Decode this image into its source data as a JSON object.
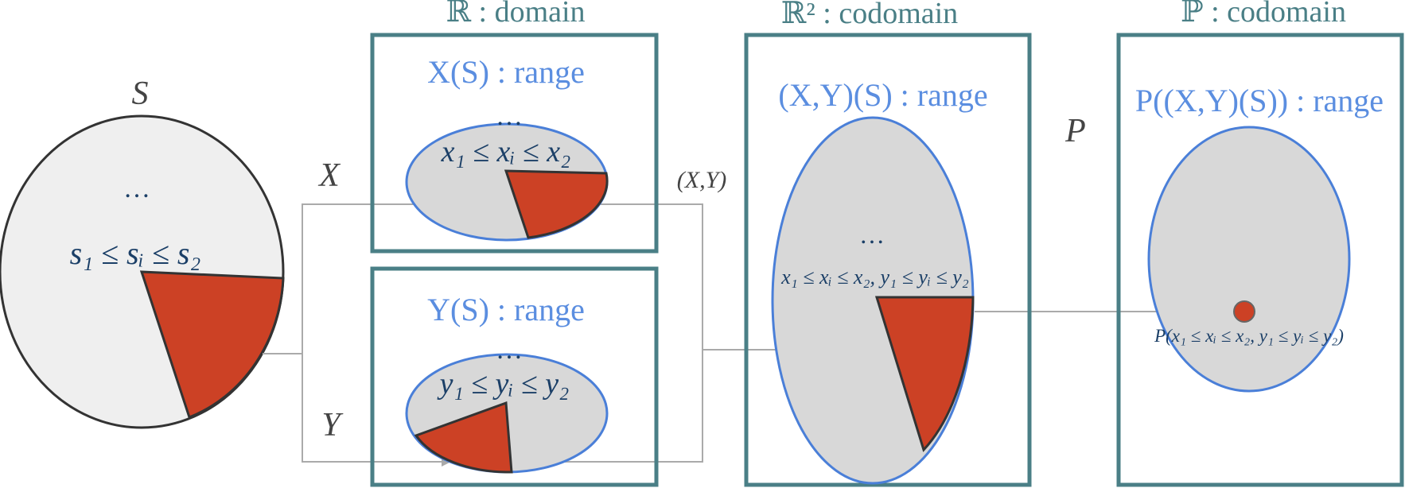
{
  "diagram": {
    "sample_space": {
      "name": "S",
      "ellipsis": "…",
      "interval": "s₁ ≤ sᵢ ≤ s₂"
    },
    "maps": {
      "x": "X",
      "y": "Y",
      "xy": "(X,Y)",
      "p": "P"
    },
    "boxes": {
      "domain_title": "ℝ : domain",
      "codomain_r2_title": "ℝ² : codomain",
      "codomain_p_title": "ℙ : codomain"
    },
    "x_range": {
      "label": "X(S) : range",
      "ellipsis": "…",
      "interval": "x₁ ≤ xᵢ ≤ x₂"
    },
    "y_range": {
      "label": "Y(S) : range",
      "ellipsis": "…",
      "interval": "y₁ ≤ yᵢ ≤ y₂"
    },
    "xy_range": {
      "label": "(X,Y)(S) : range",
      "ellipsis": "…",
      "interval": "x₁ ≤ xᵢ ≤ x₂, y₁ ≤ yᵢ ≤ y₂"
    },
    "p_range": {
      "label": "P((X,Y)(S)) : range",
      "point_label": "P(x₁ ≤ xᵢ ≤ x₂, y₁ ≤ yᵢ ≤ y₂)"
    },
    "colors": {
      "box_border": "#4a7f86",
      "ellipse_fill": "#d8d8d8",
      "sector_fill": "#cc4125",
      "ellipse_border": "#4a7fd8",
      "arrow": "#aaaaaa"
    }
  }
}
